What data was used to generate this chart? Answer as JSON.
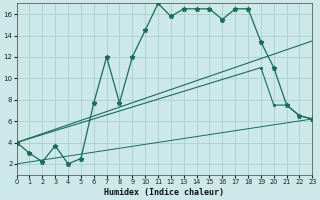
{
  "xlabel": "Humidex (Indice chaleur)",
  "bg_color": "#cce8e8",
  "grid_color": "#aacfcf",
  "line_color": "#1a6b5a",
  "xlim": [
    0,
    23
  ],
  "ylim": [
    1,
    17
  ],
  "xticks": [
    0,
    1,
    2,
    3,
    4,
    5,
    6,
    7,
    8,
    9,
    10,
    11,
    12,
    13,
    14,
    15,
    16,
    17,
    18,
    19,
    20,
    21,
    22,
    23
  ],
  "yticks": [
    2,
    4,
    6,
    8,
    10,
    12,
    14,
    16
  ],
  "line1_x": [
    0,
    1,
    2,
    3,
    4,
    5,
    6,
    7,
    8,
    9,
    10,
    11,
    12,
    13,
    14,
    15,
    16,
    17,
    18,
    19,
    20,
    21,
    22,
    23
  ],
  "line1_y": [
    4.0,
    3.0,
    2.2,
    3.7,
    2.0,
    2.5,
    7.7,
    12.0,
    7.7,
    12.0,
    14.5,
    17.0,
    15.8,
    16.5,
    16.5,
    16.5,
    15.5,
    16.5,
    16.5,
    13.4,
    11.0,
    7.5,
    6.5,
    6.2
  ],
  "line3_x": [
    0,
    23
  ],
  "line3_y": [
    4.0,
    13.5
  ],
  "line4_x": [
    0,
    19,
    20,
    21,
    22,
    23
  ],
  "line4_y": [
    4.0,
    11.0,
    7.5,
    7.5,
    6.5,
    6.2
  ],
  "line5_x": [
    0,
    23
  ],
  "line5_y": [
    2.0,
    6.2
  ]
}
